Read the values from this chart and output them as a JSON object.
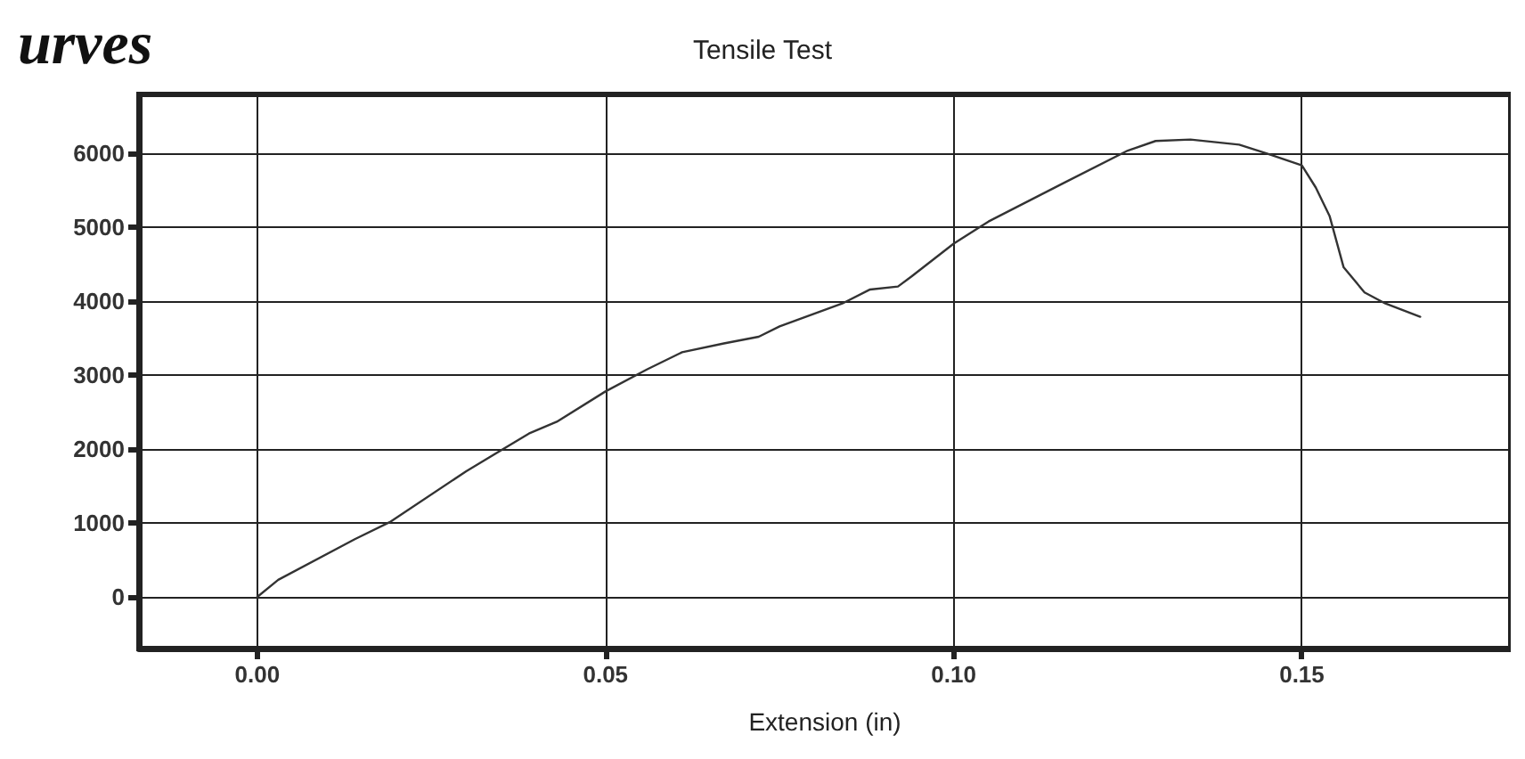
{
  "chart_data": {
    "type": "line",
    "title": "Tensile Test",
    "xlabel": "Extension (in)",
    "annotations": [
      "urves"
    ],
    "x": [
      0,
      0.003,
      0.014,
      0.019,
      0.03,
      0.039,
      0.043,
      0.05,
      0.056,
      0.061,
      0.067,
      0.072,
      0.075,
      0.084,
      0.088,
      0.092,
      0.094,
      0.1,
      0.105,
      0.116,
      0.125,
      0.129,
      0.134,
      0.141,
      0.145,
      0.15,
      0.152,
      0.154,
      0.156,
      0.159,
      0.162,
      0.167
    ],
    "series": [
      {
        "color": "#333333",
        "values": [
          0,
          230,
          780,
          1010,
          1700,
          2210,
          2370,
          2780,
          3080,
          3310,
          3430,
          3520,
          3660,
          3970,
          4160,
          4200,
          4340,
          4780,
          5080,
          5610,
          6040,
          6170,
          6190,
          6120,
          6000,
          5840,
          5540,
          5150,
          4460,
          4120,
          3970,
          3790
        ]
      }
    ],
    "xlim": [
      -0.017,
      0.18
    ],
    "xticks": [
      {
        "value": 0,
        "label": "0.00"
      },
      {
        "value": 0.05,
        "label": "0.05"
      },
      {
        "value": 0.1,
        "label": "0.10"
      },
      {
        "value": 0.15,
        "label": "0.15"
      }
    ],
    "ylim": [
      -700,
      6800
    ],
    "yticks": [
      0,
      1000,
      2000,
      3000,
      4000,
      5000,
      6000
    ],
    "grid": true,
    "marker": "none",
    "line_style": "solid"
  }
}
